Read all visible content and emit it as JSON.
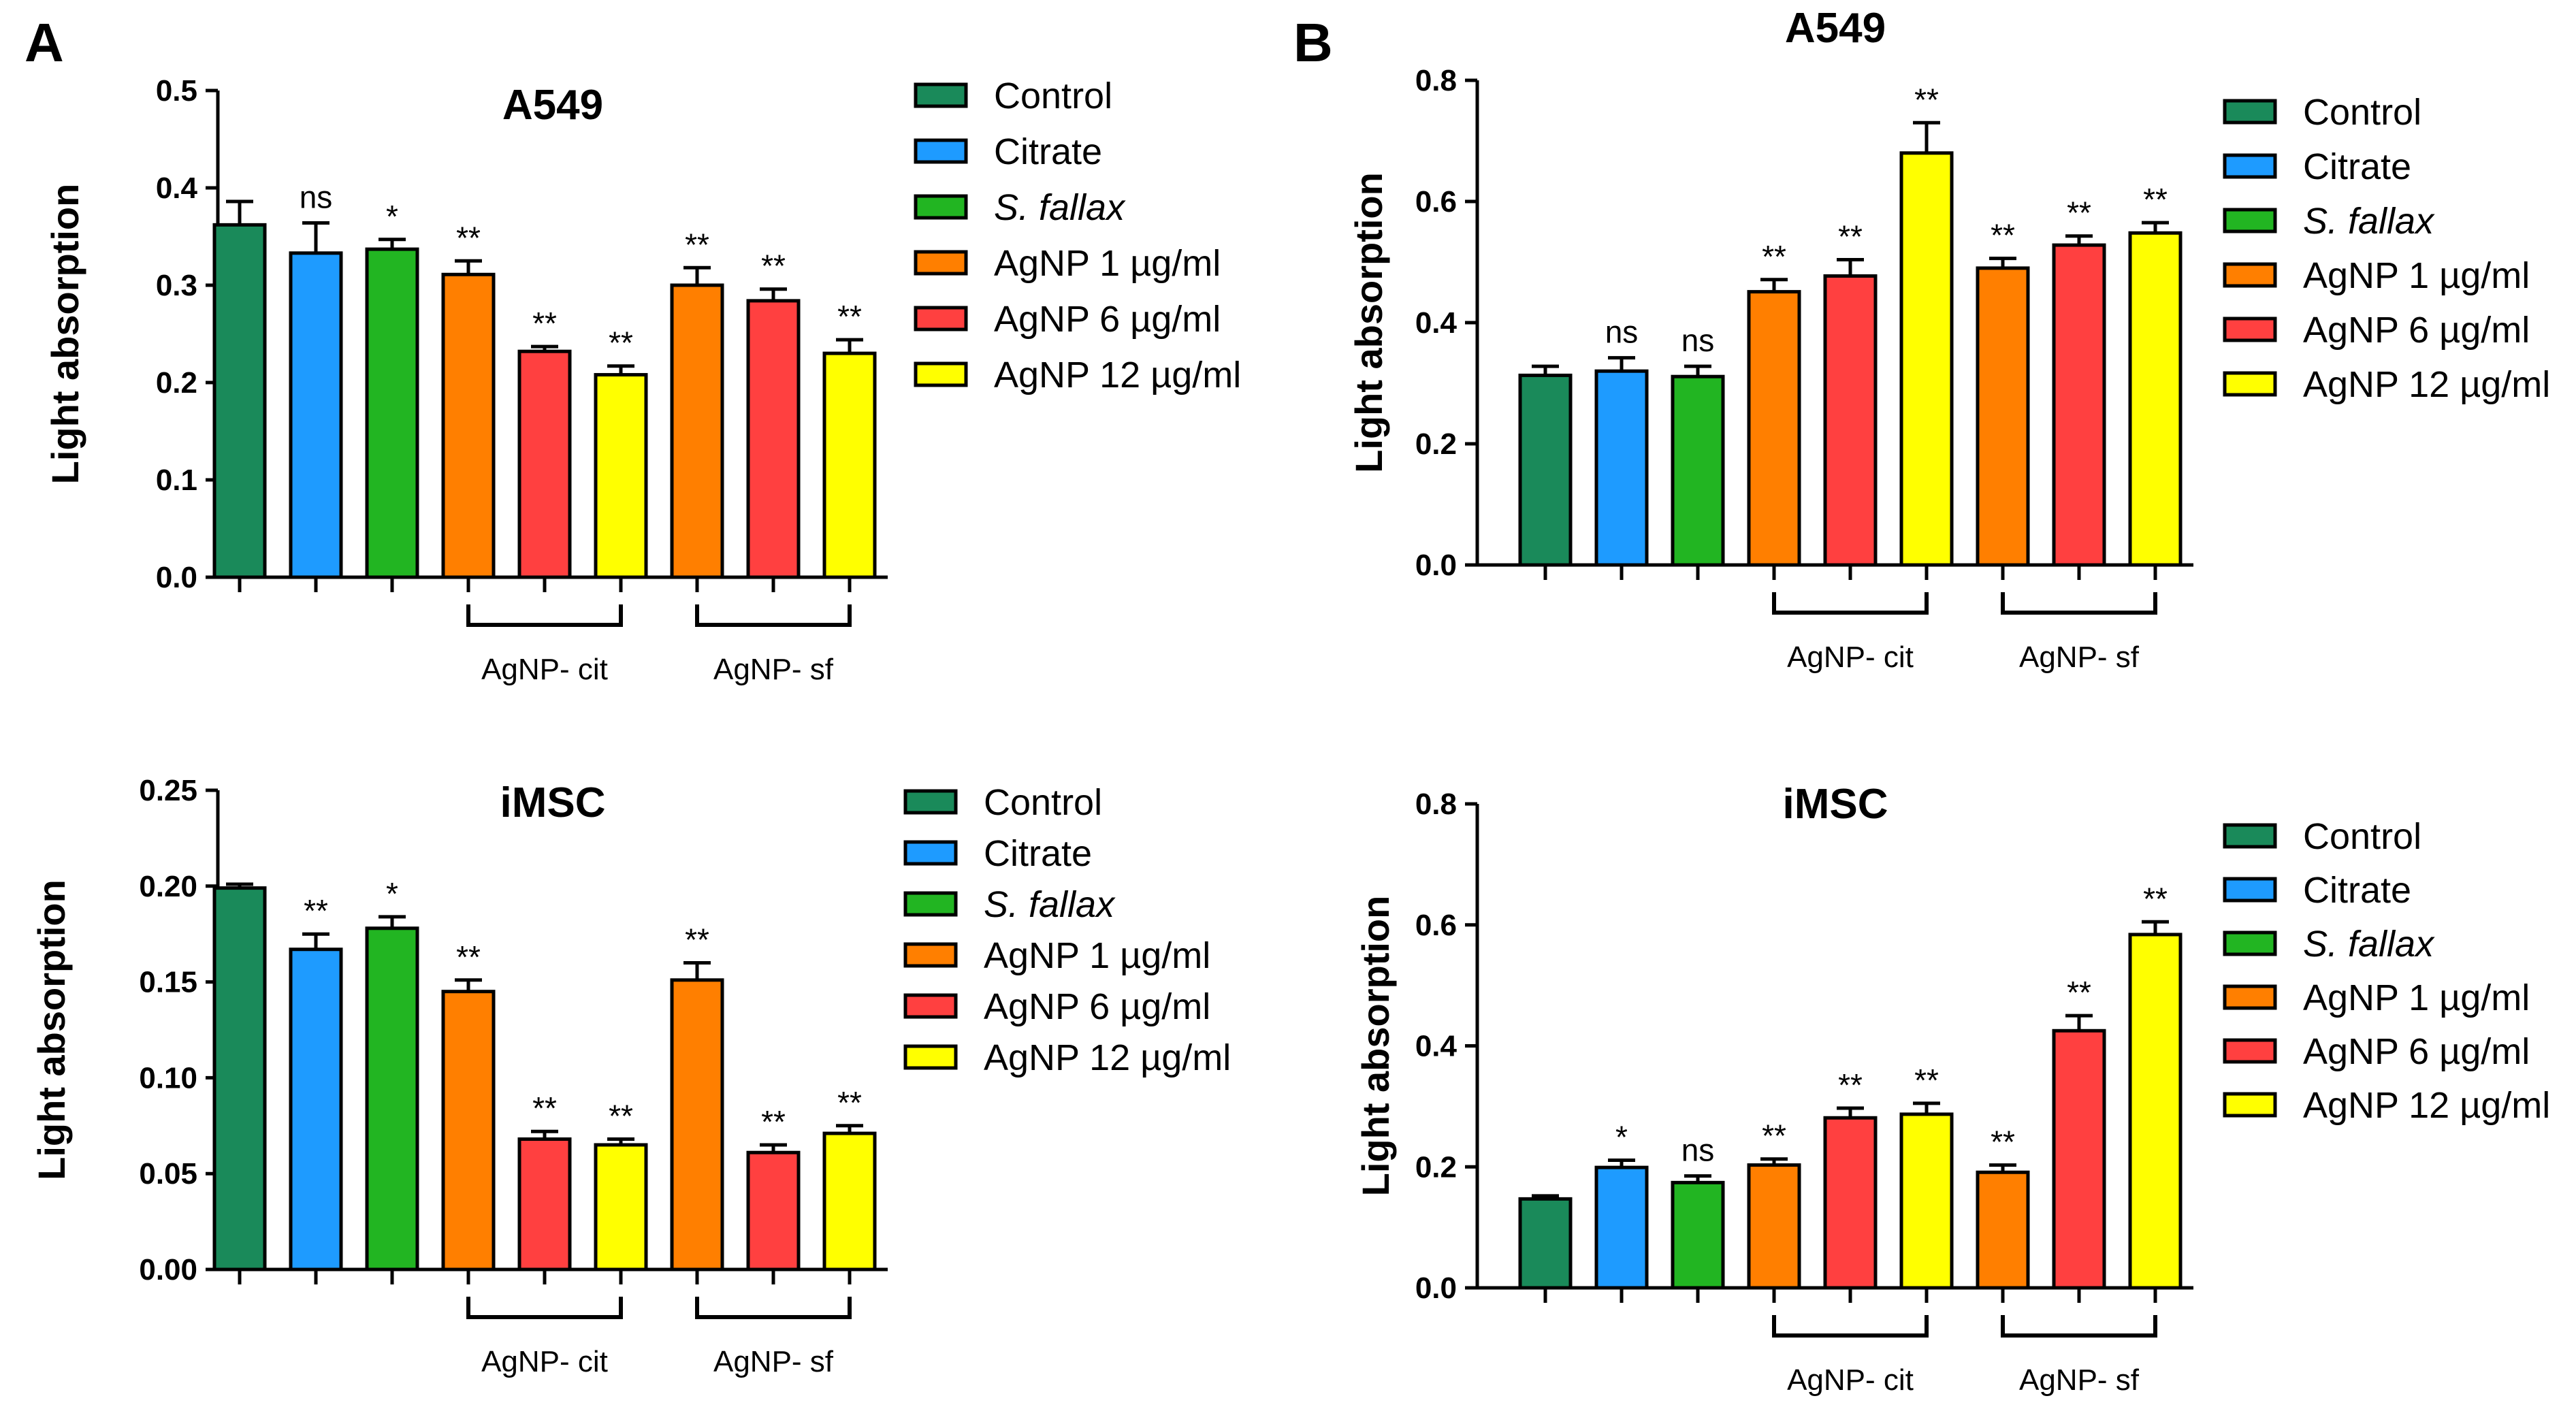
{
  "panel_labels": [
    "A",
    "B"
  ],
  "colors": {
    "Control": "#1a8a5a",
    "Citrate": "#1e9bff",
    "S. fallax": "#22b522",
    "AgNP 1 µg/ml": "#ff7f00",
    "AgNP 6 µg/ml": "#ff4040",
    "AgNP 12 µg/ml": "#ffff00"
  },
  "chart_data": [
    {
      "type": "bar",
      "panel": "A",
      "title": "A549",
      "ylabel": "Light absorption",
      "ylim": [
        0,
        0.5
      ],
      "yticks": [
        0.0,
        0.1,
        0.2,
        0.3,
        0.4,
        0.5
      ],
      "ytick_labels": [
        "0.0",
        "0.1",
        "0.2",
        "0.3",
        "0.4",
        "0.5"
      ],
      "categories": [
        "Control",
        "Citrate",
        "S. fallax",
        "AgNP 1 µg/ml",
        "AgNP 6 µg/ml",
        "AgNP 12 µg/ml",
        "AgNP 1 µg/ml",
        "AgNP 6 µg/ml",
        "AgNP 12 µg/ml"
      ],
      "values": [
        0.362,
        0.333,
        0.337,
        0.311,
        0.232,
        0.208,
        0.3,
        0.284,
        0.23
      ],
      "errors": [
        0.024,
        0.031,
        0.01,
        0.014,
        0.005,
        0.009,
        0.018,
        0.012,
        0.014
      ],
      "significance": [
        "",
        "ns",
        "*",
        "**",
        "**",
        "**",
        "**",
        "**",
        "**"
      ],
      "groups": [
        {
          "label": "AgNP- cit",
          "from": 3,
          "to": 5
        },
        {
          "label": "AgNP- sf",
          "from": 6,
          "to": 8
        }
      ],
      "legend": [
        "Control",
        "Citrate",
        "S. fallax",
        "AgNP 1 µg/ml",
        "AgNP 6 µg/ml",
        "AgNP 12 µg/ml"
      ],
      "legend_position": "right"
    },
    {
      "type": "bar",
      "panel": "A",
      "title": "iMSC",
      "ylabel": "Light absorption",
      "ylim": [
        0,
        0.25
      ],
      "yticks": [
        0.0,
        0.05,
        0.1,
        0.15,
        0.2,
        0.25
      ],
      "ytick_labels": [
        "0.00",
        "0.05",
        "0.10",
        "0.15",
        "0.20",
        "0.25"
      ],
      "categories": [
        "Control",
        "Citrate",
        "S. fallax",
        "AgNP 1 µg/ml",
        "AgNP 6 µg/ml",
        "AgNP 12 µg/ml",
        "AgNP 1 µg/ml",
        "AgNP 6 µg/ml",
        "AgNP 12 µg/ml"
      ],
      "values": [
        0.199,
        0.167,
        0.178,
        0.145,
        0.068,
        0.065,
        0.151,
        0.061,
        0.071
      ],
      "errors": [
        0.002,
        0.008,
        0.006,
        0.006,
        0.004,
        0.003,
        0.009,
        0.004,
        0.004
      ],
      "significance": [
        "",
        "**",
        "*",
        "**",
        "**",
        "**",
        "**",
        "**",
        "**"
      ],
      "groups": [
        {
          "label": "AgNP- cit",
          "from": 3,
          "to": 5
        },
        {
          "label": "AgNP- sf",
          "from": 6,
          "to": 8
        }
      ],
      "legend": [
        "Control",
        "Citrate",
        "S. fallax",
        "AgNP 1 µg/ml",
        "AgNP 6 µg/ml",
        "AgNP 12 µg/ml"
      ],
      "legend_position": "right"
    },
    {
      "type": "bar",
      "panel": "B",
      "title": "A549",
      "ylabel": "Light absorption",
      "ylim": [
        0,
        0.8
      ],
      "yticks": [
        0.0,
        0.2,
        0.4,
        0.6,
        0.8
      ],
      "ytick_labels": [
        "0.0",
        "0.2",
        "0.4",
        "0.6",
        "0.8"
      ],
      "categories": [
        "Control",
        "Citrate",
        "S. fallax",
        "AgNP 1 µg/ml",
        "AgNP 6 µg/ml",
        "AgNP 12 µg/ml",
        "AgNP 1 µg/ml",
        "AgNP 6 µg/ml",
        "AgNP 12 µg/ml"
      ],
      "values": [
        0.313,
        0.32,
        0.311,
        0.451,
        0.477,
        0.68,
        0.49,
        0.528,
        0.548
      ],
      "errors": [
        0.015,
        0.022,
        0.017,
        0.02,
        0.027,
        0.05,
        0.016,
        0.015,
        0.017
      ],
      "significance": [
        "",
        "ns",
        "ns",
        "**",
        "**",
        "**",
        "**",
        "**",
        "**"
      ],
      "groups": [
        {
          "label": "AgNP- cit",
          "from": 3,
          "to": 5
        },
        {
          "label": "AgNP- sf",
          "from": 6,
          "to": 8
        }
      ],
      "legend": [
        "Control",
        "Citrate",
        "S. fallax",
        "AgNP 1 µg/ml",
        "AgNP 6 µg/ml",
        "AgNP 12 µg/ml"
      ],
      "legend_position": "right"
    },
    {
      "type": "bar",
      "panel": "B",
      "title": "iMSC",
      "ylabel": "Light absorption",
      "ylim": [
        0,
        0.8
      ],
      "yticks": [
        0.0,
        0.2,
        0.4,
        0.6,
        0.8
      ],
      "ytick_labels": [
        "0.0",
        "0.2",
        "0.4",
        "0.6",
        "0.8"
      ],
      "categories": [
        "Control",
        "Citrate",
        "S. fallax",
        "AgNP 1 µg/ml",
        "AgNP 6 µg/ml",
        "AgNP 12 µg/ml",
        "AgNP 1 µg/ml",
        "AgNP 6 µg/ml",
        "AgNP 12 µg/ml"
      ],
      "values": [
        0.147,
        0.199,
        0.174,
        0.203,
        0.281,
        0.287,
        0.191,
        0.425,
        0.584
      ],
      "errors": [
        0.005,
        0.012,
        0.011,
        0.01,
        0.016,
        0.018,
        0.012,
        0.025,
        0.021
      ],
      "significance": [
        "",
        "*",
        "ns",
        "**",
        "**",
        "**",
        "**",
        "**",
        "**"
      ],
      "groups": [
        {
          "label": "AgNP- cit",
          "from": 3,
          "to": 5
        },
        {
          "label": "AgNP- sf",
          "from": 6,
          "to": 8
        }
      ],
      "legend": [
        "Control",
        "Citrate",
        "S. fallax",
        "AgNP 1 µg/ml",
        "AgNP 6 µg/ml",
        "AgNP 12 µg/ml"
      ],
      "legend_position": "right"
    }
  ]
}
